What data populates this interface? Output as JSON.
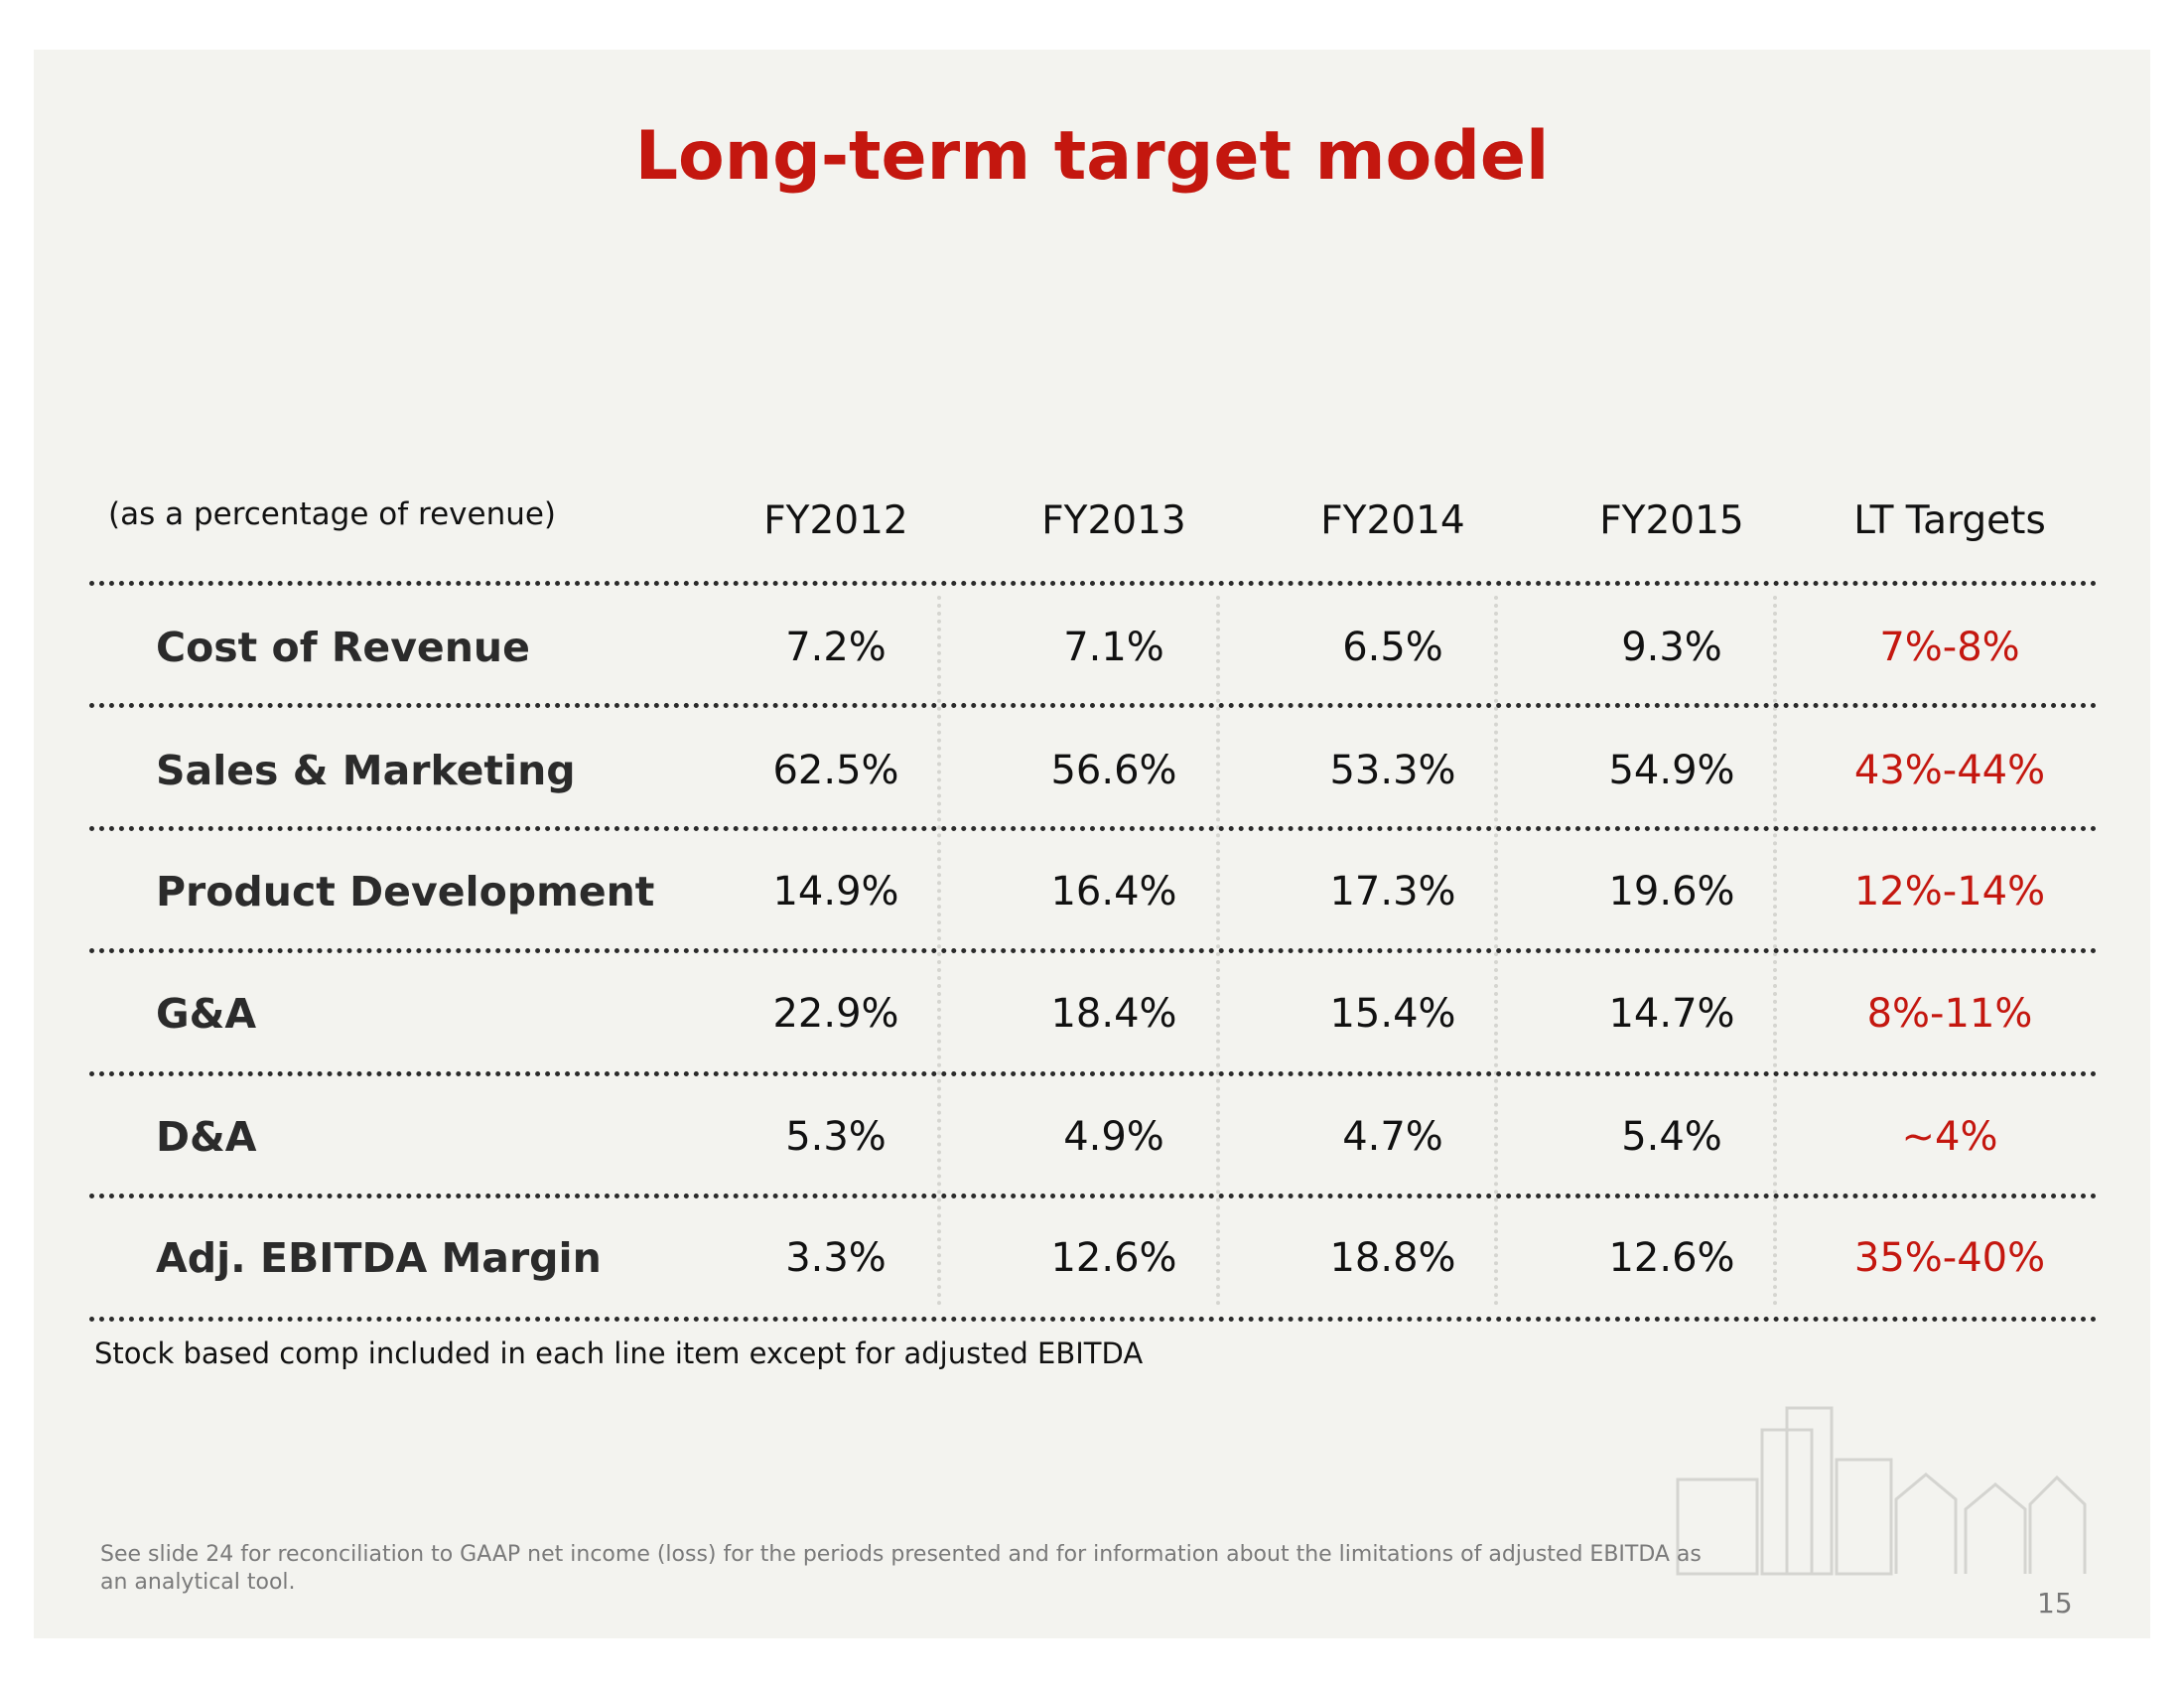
{
  "header": {
    "title": "Long-term target model"
  },
  "table": {
    "caption": "(as a percentage of revenue)",
    "columns": [
      "FY2012",
      "FY2013",
      "FY2014",
      "FY2015",
      "LT Targets"
    ],
    "rows": [
      [
        "Cost of Revenue",
        "7.2%",
        "7.1%",
        "6.5%",
        "9.3%",
        "7%-8%"
      ],
      [
        "Sales & Marketing",
        "62.5%",
        "56.6%",
        "53.3%",
        "54.9%",
        "43%-44%"
      ],
      [
        "Product Development",
        "14.9%",
        "16.4%",
        "17.3%",
        "19.6%",
        "12%-14%"
      ],
      [
        "G&A",
        "22.9%",
        "18.4%",
        "15.4%",
        "14.7%",
        "8%-11%"
      ],
      [
        "D&A",
        "5.3%",
        "4.9%",
        "4.7%",
        "5.4%",
        "~4%"
      ],
      [
        "Adj. EBITDA Margin",
        "3.3%",
        "12.6%",
        "18.8%",
        "12.6%",
        "35%-40%"
      ]
    ],
    "note": "Stock based comp included in each line item except for adjusted EBITDA"
  },
  "footer": {
    "disclaimer": "See slide 24 for reconciliation to GAAP net income (loss) for the periods presented and for information about the limitations of adjusted EBITDA as an analytical tool.",
    "page_number": "15"
  }
}
